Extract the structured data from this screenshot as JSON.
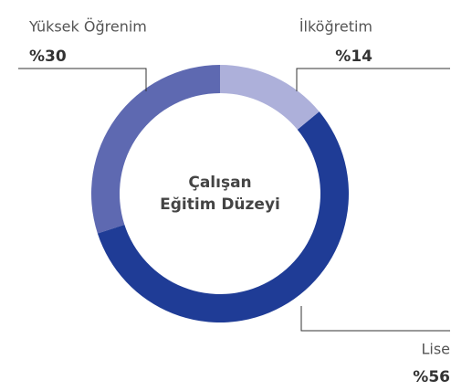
{
  "chart_data": {
    "type": "donut",
    "title_lines": [
      "Çalışan",
      "Eğitim Düzeyi"
    ],
    "categories": [
      "İlköğretim",
      "Lise",
      "Yüksek Öğrenim"
    ],
    "values": [
      14,
      56,
      30
    ],
    "value_labels": [
      "%14",
      "%56",
      "%30"
    ],
    "colors": [
      "#adb0da",
      "#1f3c96",
      "#5e69b1"
    ]
  }
}
